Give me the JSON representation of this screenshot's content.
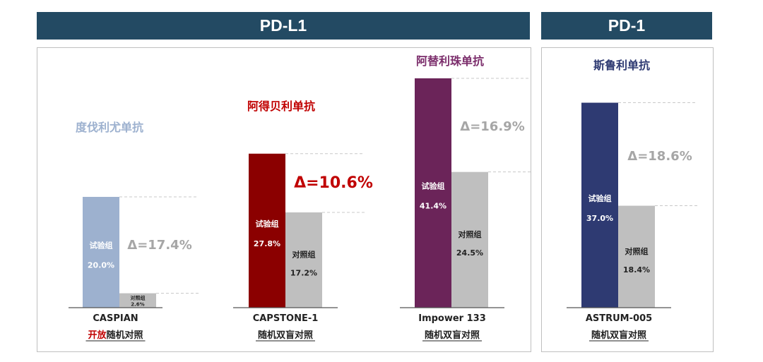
{
  "headers": {
    "pdl1": "PD-L1",
    "pd1": "PD-1"
  },
  "colors": {
    "header_bg": "#234a63",
    "control": "#bfbfbf",
    "durvalumab": "#9db1cf",
    "atezolizumab": "#8b0000",
    "ipilimumab_like": "#6b2459",
    "serplulimab": "#2e3a72",
    "dashed": "#c8c8c8"
  },
  "chart_data": {
    "type": "bar",
    "ylim": [
      0,
      45
    ],
    "unit": "%",
    "studies": [
      {
        "drug": "度伐利尤单抗",
        "drug_color": "#9db1cf",
        "trial": "CASPIAN",
        "design_parts": [
          {
            "text": "开放",
            "color": "#c00000"
          },
          {
            "text": "随机对照",
            "color": "#222222"
          }
        ],
        "experimental": {
          "label": "试验组",
          "value": 20.0,
          "value_text": "20.0%",
          "color": "#9db1cf"
        },
        "control": {
          "label": "对照组",
          "value": 2.6,
          "value_text": "2.6%",
          "color": "#bfbfbf"
        },
        "delta": "Δ=17.4%",
        "delta_color": "#a6a6a6"
      },
      {
        "drug": "阿得贝利单抗",
        "drug_color": "#c00000",
        "trial": "CAPSTONE-1",
        "design_parts": [
          {
            "text": "随机双盲对照",
            "color": "#222222"
          }
        ],
        "experimental": {
          "label": "试验组",
          "value": 27.8,
          "value_text": "27.8%",
          "color": "#8b0000"
        },
        "control": {
          "label": "对照组",
          "value": 17.2,
          "value_text": "17.2%",
          "color": "#bfbfbf"
        },
        "delta": "Δ=10.6%",
        "delta_color": "#c00000"
      },
      {
        "drug": "阿替利珠单抗",
        "drug_color": "#7b2d6b",
        "trial": "Impower 133",
        "design_parts": [
          {
            "text": "随机双盲对照",
            "color": "#222222"
          }
        ],
        "experimental": {
          "label": "试验组",
          "value": 41.4,
          "value_text": "41.4%",
          "color": "#6b2459"
        },
        "control": {
          "label": "对照组",
          "value": 24.5,
          "value_text": "24.5%",
          "color": "#bfbfbf"
        },
        "delta": "Δ=16.9%",
        "delta_color": "#a6a6a6"
      },
      {
        "drug": "斯鲁利单抗",
        "drug_color": "#2e3a72",
        "trial": "ASTRUM-005",
        "design_parts": [
          {
            "text": "随机双盲对照",
            "color": "#222222"
          }
        ],
        "experimental": {
          "label": "试验组",
          "value": 37.0,
          "value_text": "37.0%",
          "color": "#2e3a72"
        },
        "control": {
          "label": "对照组",
          "value": 18.4,
          "value_text": "18.4%",
          "color": "#bfbfbf"
        },
        "delta": "Δ=18.6%",
        "delta_color": "#a6a6a6"
      }
    ]
  }
}
